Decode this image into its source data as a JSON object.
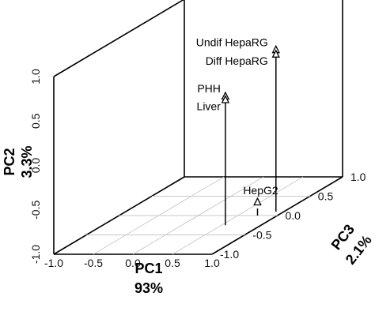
{
  "chart_data": {
    "type": "scatter",
    "projection": "3d",
    "title": "",
    "axes": {
      "x": {
        "label": "PC1",
        "sublabel": "93%",
        "range": [
          -1.0,
          1.0
        ],
        "ticks": [
          "-1.0",
          "-0.5",
          "0.0",
          "0.5",
          "1.0"
        ]
      },
      "y": {
        "label": "PC2",
        "sublabel": "3.3%",
        "range": [
          -1.0,
          1.0
        ],
        "ticks": [
          "-1.0",
          "-0.5",
          "0.0",
          "0.5",
          "1.0"
        ]
      },
      "z": {
        "label": "PC3",
        "sublabel": "2.1%",
        "range": [
          -1.0,
          1.0
        ],
        "ticks": [
          "-1.0",
          "-0.5",
          "0.0",
          "0.5",
          "1.0"
        ]
      }
    },
    "grid": "floor",
    "drop_lines": true,
    "marker": "triangle-open",
    "points": [
      {
        "name": "Undif HepaRG",
        "x": 0.9,
        "y": 0.82,
        "z": 0.1
      },
      {
        "name": "Diff HepaRG",
        "x": 0.9,
        "y": 0.77,
        "z": 0.1
      },
      {
        "name": "PHH",
        "x": 0.55,
        "y": 0.45,
        "z": -0.25
      },
      {
        "name": "Liver",
        "x": 0.55,
        "y": 0.41,
        "z": -0.25
      },
      {
        "name": "HepG2",
        "x": 0.75,
        "y": -0.85,
        "z": 0.0
      }
    ],
    "point_labels": [
      {
        "text": "Undif HepaRG",
        "points": [
          "Undif HepaRG"
        ]
      },
      {
        "text": "Diff HepaRG",
        "points": [
          "Diff HepaRG"
        ]
      },
      {
        "text": "PHH",
        "points": [
          "PHH"
        ]
      },
      {
        "text": "Liver",
        "points": [
          "Liver"
        ]
      },
      {
        "text": "HepG2",
        "points": [
          "HepG2"
        ]
      }
    ]
  }
}
